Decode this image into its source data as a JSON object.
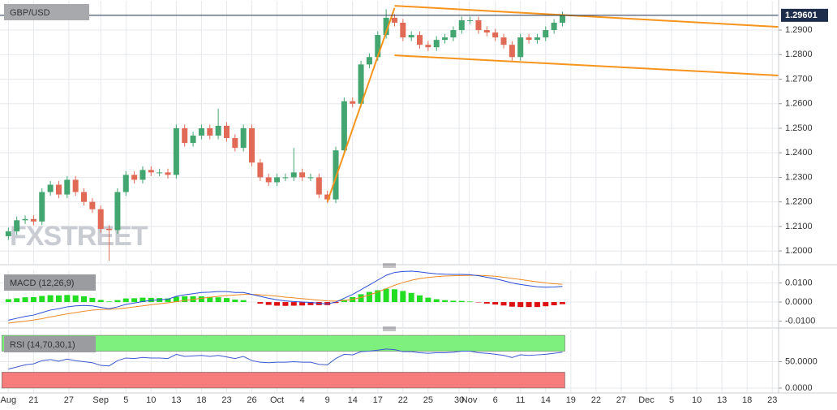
{
  "chart_data": [
    {
      "type": "candlestick",
      "title": "GBP/USD",
      "watermark": "FXSTREET",
      "xlim": [
        -1,
        91.75
      ],
      "ylim": [
        1.1954,
        1.3006
      ],
      "yticks": [
        {
          "value": 1.2,
          "label": "1.2000"
        },
        {
          "value": 1.21,
          "label": "1.2100"
        },
        {
          "value": 1.22,
          "label": "1.2200"
        },
        {
          "value": 1.23,
          "label": "1.2300"
        },
        {
          "value": 1.24,
          "label": "1.2400"
        },
        {
          "value": 1.25,
          "label": "1.2500"
        },
        {
          "value": 1.26,
          "label": "1.2600"
        },
        {
          "value": 1.27,
          "label": "1.2700"
        },
        {
          "value": 1.28,
          "label": "1.2800"
        },
        {
          "value": 1.29,
          "label": "1.2900"
        }
      ],
      "last_price": 1.29601,
      "last_price_color": "#1f2d4d",
      "up_color": "#43a56f",
      "down_color": "#e06a55",
      "grid": true,
      "open": [
        1.206,
        1.208,
        1.2125,
        1.213,
        1.212,
        1.224,
        1.227,
        1.223,
        1.229,
        1.224,
        1.22,
        1.217,
        1.209,
        1.2085,
        1.224,
        1.231,
        1.229,
        1.233,
        1.232,
        1.232,
        1.231,
        1.25,
        1.244,
        1.247,
        1.25,
        1.247,
        1.251,
        1.246,
        1.242,
        1.25,
        1.236,
        1.23,
        1.228,
        1.23,
        1.23,
        1.232,
        1.23,
        1.23,
        1.223,
        1.221,
        1.241,
        1.261,
        1.26,
        1.276,
        1.279,
        1.288,
        1.295,
        1.293,
        1.287,
        1.288,
        1.284,
        1.283,
        1.286,
        1.287,
        1.29,
        1.294,
        1.294,
        1.29,
        1.289,
        1.287,
        1.284,
        1.279,
        1.287,
        1.286,
        1.287,
        1.29,
        1.293
      ],
      "high": [
        1.2095,
        1.214,
        1.2145,
        1.2145,
        1.2255,
        1.2285,
        1.2285,
        1.2305,
        1.2305,
        1.2255,
        1.2215,
        1.2185,
        1.2105,
        1.2255,
        1.2325,
        1.2325,
        1.2345,
        1.2345,
        1.2335,
        1.2335,
        1.2515,
        1.2515,
        1.2485,
        1.2515,
        1.2515,
        1.258,
        1.2525,
        1.2475,
        1.2515,
        1.2515,
        1.2375,
        1.2315,
        1.2315,
        1.2315,
        1.242,
        1.2335,
        1.2315,
        1.2315,
        1.2245,
        1.2425,
        1.2625,
        1.2625,
        1.2775,
        1.2805,
        1.2895,
        1.2985,
        1.2965,
        1.2945,
        1.2895,
        1.2895,
        1.2855,
        1.2875,
        1.2885,
        1.2915,
        1.2955,
        1.2955,
        1.2955,
        1.2915,
        1.2905,
        1.2885,
        1.2855,
        1.2885,
        1.2885,
        1.2885,
        1.2915,
        1.2945,
        1.2975
      ],
      "low": [
        1.2045,
        1.2065,
        1.211,
        1.2105,
        1.2105,
        1.2225,
        1.2215,
        1.2215,
        1.2225,
        1.2185,
        1.2155,
        1.2075,
        1.196,
        1.207,
        1.2225,
        1.2275,
        1.2275,
        1.2305,
        1.2305,
        1.2295,
        1.2295,
        1.2425,
        1.2425,
        1.2455,
        1.2455,
        1.2455,
        1.2445,
        1.2405,
        1.2405,
        1.2345,
        1.2285,
        1.2265,
        1.2265,
        1.2285,
        1.2285,
        1.2285,
        1.2285,
        1.2215,
        1.2195,
        1.2195,
        1.2395,
        1.2585,
        1.2585,
        1.2745,
        1.2775,
        1.2865,
        1.2915,
        1.2855,
        1.2855,
        1.2825,
        1.2815,
        1.2815,
        1.2845,
        1.2855,
        1.2885,
        1.2925,
        1.2885,
        1.2875,
        1.2855,
        1.2825,
        1.2775,
        1.2775,
        1.2845,
        1.2845,
        1.2855,
        1.2885,
        1.2915
      ],
      "close": [
        1.208,
        1.2125,
        1.213,
        1.212,
        1.224,
        1.227,
        1.223,
        1.229,
        1.224,
        1.22,
        1.217,
        1.209,
        1.2085,
        1.224,
        1.231,
        1.229,
        1.233,
        1.232,
        1.232,
        1.231,
        1.25,
        1.244,
        1.247,
        1.25,
        1.247,
        1.251,
        1.246,
        1.242,
        1.25,
        1.236,
        1.23,
        1.228,
        1.23,
        1.23,
        1.232,
        1.23,
        1.23,
        1.223,
        1.221,
        1.241,
        1.261,
        1.26,
        1.276,
        1.279,
        1.288,
        1.295,
        1.293,
        1.287,
        1.288,
        1.284,
        1.283,
        1.286,
        1.287,
        1.29,
        1.294,
        1.294,
        1.29,
        1.289,
        1.287,
        1.284,
        1.279,
        1.287,
        1.286,
        1.287,
        1.29,
        1.293,
        1.296
      ],
      "trendline_color": "#f7941d",
      "trendlines": [
        {
          "x": [
            38,
            46
          ],
          "y": [
            1.22,
            1.299
          ]
        },
        {
          "x": [
            46,
            91.75
          ],
          "y": [
            1.2999,
            1.2913
          ]
        },
        {
          "x": [
            46,
            91.75
          ],
          "y": [
            1.2797,
            1.2715
          ]
        }
      ]
    },
    {
      "type": "macd",
      "title": "MACD (12,26,9)",
      "xlim": [
        -1,
        91.75
      ],
      "ylim": [
        -0.0123,
        0.0149
      ],
      "grid": true,
      "yticks": [
        {
          "value": 0.01,
          "label": "0.0100"
        },
        {
          "value": 0,
          "label": "0.0000"
        },
        {
          "value": -0.01,
          "label": "-0.0100"
        }
      ],
      "macd_color": "#2c4fd6",
      "signal_color": "#f08a24",
      "histogram_up_color": "#22dd22",
      "histogram_down_color": "#dd1111",
      "macd_values": [
        -0.0095,
        -0.0085,
        -0.0075,
        -0.0068,
        -0.0055,
        -0.0042,
        -0.0035,
        -0.0025,
        -0.002,
        -0.0018,
        -0.002,
        -0.0028,
        -0.0035,
        -0.0025,
        -0.0012,
        -0.0005,
        0.0003,
        0.0008,
        0.0012,
        0.0015,
        0.003,
        0.0038,
        0.0044,
        0.005,
        0.0052,
        0.0055,
        0.0055,
        0.005,
        0.005,
        0.004,
        0.003,
        0.002,
        0.0012,
        0.0006,
        0.0003,
        0.0,
        -0.0002,
        -0.0006,
        -0.001,
        0.0,
        0.002,
        0.004,
        0.0065,
        0.009,
        0.0115,
        0.014,
        0.0155,
        0.016,
        0.0162,
        0.0158,
        0.0152,
        0.0148,
        0.0146,
        0.0145,
        0.0145,
        0.0143,
        0.0138,
        0.013,
        0.0122,
        0.0112,
        0.01,
        0.0092,
        0.0086,
        0.008,
        0.0078,
        0.0079,
        0.0082
      ],
      "signal_values": [
        -0.011,
        -0.0105,
        -0.01,
        -0.0094,
        -0.0087,
        -0.0078,
        -0.007,
        -0.0062,
        -0.0055,
        -0.0048,
        -0.0042,
        -0.0039,
        -0.0038,
        -0.0035,
        -0.0031,
        -0.0025,
        -0.002,
        -0.0014,
        -0.0009,
        -0.0004,
        0.0002,
        0.0008,
        0.0014,
        0.002,
        0.0025,
        0.003,
        0.0034,
        0.0037,
        0.004,
        0.004,
        0.0038,
        0.0035,
        0.0031,
        0.0026,
        0.0022,
        0.0018,
        0.0014,
        0.001,
        0.0006,
        0.0005,
        0.0008,
        0.0014,
        0.0024,
        0.0037,
        0.0053,
        0.007,
        0.0088,
        0.0102,
        0.0114,
        0.0123,
        0.0129,
        0.0133,
        0.0136,
        0.0138,
        0.0139,
        0.014,
        0.014,
        0.0138,
        0.0135,
        0.013,
        0.0124,
        0.0118,
        0.0112,
        0.0106,
        0.01,
        0.0096,
        0.0093
      ],
      "histogram_values": [
        0.0015,
        0.002,
        0.0025,
        0.0026,
        0.0032,
        0.0036,
        0.0035,
        0.0037,
        0.0035,
        0.003,
        0.0022,
        0.0011,
        0.0003,
        0.001,
        0.0019,
        0.002,
        0.0023,
        0.0022,
        0.0021,
        0.0019,
        0.0028,
        0.003,
        0.003,
        0.003,
        0.0027,
        0.0025,
        0.0021,
        0.0013,
        0.001,
        0.0,
        -0.0008,
        -0.0015,
        -0.0019,
        -0.002,
        -0.0019,
        -0.0018,
        -0.0016,
        -0.0016,
        -0.0016,
        -0.0005,
        0.0012,
        0.0026,
        0.0041,
        0.0053,
        0.0062,
        0.007,
        0.0067,
        0.0058,
        0.0048,
        0.0035,
        0.0023,
        0.0015,
        0.001,
        0.0007,
        0.0006,
        0.0003,
        -0.0002,
        -0.0008,
        -0.0013,
        -0.0018,
        -0.0024,
        -0.0026,
        -0.0026,
        -0.0026,
        -0.0022,
        -0.0017,
        -0.0011
      ]
    },
    {
      "type": "rsi",
      "title": "RSI (14,70,30,1)",
      "xlim": [
        -1,
        91.75
      ],
      "ylim": [
        -4.7,
        104.7
      ],
      "grid": true,
      "yticks": [
        {
          "value": 50,
          "label": "50.0000"
        },
        {
          "value": 0,
          "label": "0.0000"
        }
      ],
      "upper": 70,
      "lower": 30,
      "upper_color": "#7ef07e",
      "lower_color": "#f77c7c",
      "color": "#3d5ad0",
      "values": [
        36,
        40,
        44,
        46,
        52,
        54,
        51,
        55,
        52,
        50,
        48,
        43,
        42,
        52,
        57,
        56,
        58,
        57,
        57,
        56,
        64,
        60,
        61,
        62,
        60,
        62,
        59,
        56,
        60,
        52,
        49,
        48,
        49,
        49,
        50,
        49,
        49,
        45,
        44,
        56,
        64,
        63,
        69,
        70,
        72,
        74,
        73,
        69,
        69,
        67,
        66,
        67,
        67,
        68,
        70,
        70,
        67,
        66,
        64,
        62,
        58,
        63,
        62,
        63,
        64,
        66,
        68
      ],
      "xticks": [
        {
          "value": 0,
          "label": "Aug"
        },
        {
          "value": 3,
          "label": "21"
        },
        {
          "value": 7.2,
          "label": "27"
        },
        {
          "value": 11,
          "label": "Sep"
        },
        {
          "value": 14,
          "label": "5"
        },
        {
          "value": 17,
          "label": "10"
        },
        {
          "value": 20,
          "label": "13"
        },
        {
          "value": 23,
          "label": "18"
        },
        {
          "value": 26,
          "label": "23"
        },
        {
          "value": 29,
          "label": "26"
        },
        {
          "value": 32,
          "label": "Oct"
        },
        {
          "value": 35,
          "label": "4"
        },
        {
          "value": 38,
          "label": "9"
        },
        {
          "value": 41,
          "label": "14"
        },
        {
          "value": 44,
          "label": "17"
        },
        {
          "value": 47,
          "label": "22"
        },
        {
          "value": 50,
          "label": "25"
        },
        {
          "value": 53.7,
          "label": "30"
        },
        {
          "value": 54.9,
          "label": "Nov"
        },
        {
          "value": 58,
          "label": "6"
        },
        {
          "value": 61,
          "label": "11"
        },
        {
          "value": 64,
          "label": "14"
        },
        {
          "value": 67,
          "label": "19"
        },
        {
          "value": 70,
          "label": "22"
        },
        {
          "value": 73,
          "label": "27"
        },
        {
          "value": 76,
          "label": "Dec"
        },
        {
          "value": 79,
          "label": "5"
        },
        {
          "value": 82,
          "label": "10"
        },
        {
          "value": 85,
          "label": "13"
        },
        {
          "value": 88,
          "label": "18"
        },
        {
          "value": 91,
          "label": "23"
        }
      ]
    }
  ]
}
